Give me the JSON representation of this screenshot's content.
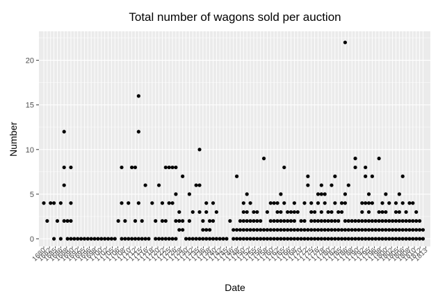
{
  "chart_data": {
    "type": "scatter",
    "title": "Total number of wagons sold per auction",
    "xlabel": "Date",
    "ylabel": "Number",
    "x_tick_labels": [
      "1680",
      "1682",
      "1685",
      "1686",
      "1688",
      "1690",
      "1692",
      "1695",
      "1696",
      "1698",
      "1700",
      "1702",
      "1705",
      "1706",
      "1708",
      "1710",
      "1712",
      "1715",
      "1716",
      "1718",
      "1720",
      "1722",
      "1725",
      "1726",
      "1728",
      "1730",
      "1732",
      "1735",
      "1736",
      "1738",
      "1740",
      "1742",
      "1745",
      "1746",
      "1748",
      "1750",
      "1752",
      "1755",
      "1756",
      "1758",
      "1760",
      "1762",
      "1765",
      "1766",
      "1768",
      "1770",
      "1772",
      "1775",
      "1776",
      "1778",
      "1780",
      "1782",
      "1785",
      "1786",
      "1788",
      "1790",
      "1792",
      "1795",
      "1796",
      "1798",
      "1800",
      "1802",
      "1805",
      "1806",
      "1808",
      "1810",
      "1812",
      "1813"
    ],
    "ylim": [
      0,
      22
    ],
    "y_ticks": [
      0,
      5,
      10,
      15,
      20
    ],
    "grid": true,
    "marker_color": "#000000",
    "panel_background": "#ebebeb",
    "grid_major_color": "#ffffff",
    "points": [
      [
        0,
        4
      ],
      [
        1,
        2
      ],
      [
        2,
        4
      ],
      [
        3,
        0
      ],
      [
        3,
        4
      ],
      [
        4,
        2
      ],
      [
        5,
        4
      ],
      [
        5,
        0
      ],
      [
        6,
        2
      ],
      [
        6,
        6
      ],
      [
        6,
        8
      ],
      [
        6,
        12
      ],
      [
        7,
        0
      ],
      [
        7,
        2
      ],
      [
        8,
        0
      ],
      [
        8,
        2
      ],
      [
        8,
        4
      ],
      [
        8,
        8
      ],
      [
        9,
        0
      ],
      [
        10,
        0
      ],
      [
        11,
        0
      ],
      [
        12,
        0
      ],
      [
        13,
        0
      ],
      [
        14,
        0
      ],
      [
        15,
        0
      ],
      [
        16,
        0
      ],
      [
        17,
        0
      ],
      [
        18,
        0
      ],
      [
        19,
        0
      ],
      [
        20,
        0
      ],
      [
        21,
        0
      ],
      [
        22,
        2
      ],
      [
        23,
        0
      ],
      [
        23,
        4
      ],
      [
        23,
        8
      ],
      [
        24,
        0
      ],
      [
        24,
        2
      ],
      [
        25,
        0
      ],
      [
        25,
        4
      ],
      [
        26,
        0
      ],
      [
        26,
        8
      ],
      [
        27,
        0
      ],
      [
        27,
        2
      ],
      [
        27,
        8
      ],
      [
        28,
        0
      ],
      [
        28,
        4
      ],
      [
        28,
        12
      ],
      [
        28,
        16
      ],
      [
        29,
        0
      ],
      [
        29,
        2
      ],
      [
        30,
        0
      ],
      [
        30,
        6
      ],
      [
        31,
        0
      ],
      [
        32,
        4
      ],
      [
        33,
        0
      ],
      [
        33,
        2
      ],
      [
        34,
        0
      ],
      [
        34,
        6
      ],
      [
        35,
        0
      ],
      [
        35,
        2
      ],
      [
        35,
        4
      ],
      [
        36,
        0
      ],
      [
        36,
        2
      ],
      [
        36,
        8
      ],
      [
        37,
        0
      ],
      [
        37,
        4
      ],
      [
        37,
        8
      ],
      [
        38,
        0
      ],
      [
        38,
        4
      ],
      [
        38,
        8
      ],
      [
        39,
        0
      ],
      [
        39,
        2
      ],
      [
        39,
        5
      ],
      [
        39,
        8
      ],
      [
        40,
        1
      ],
      [
        40,
        2
      ],
      [
        40,
        3
      ],
      [
        41,
        1
      ],
      [
        41,
        2
      ],
      [
        41,
        7
      ],
      [
        42,
        0
      ],
      [
        43,
        0
      ],
      [
        43,
        2
      ],
      [
        43,
        5
      ],
      [
        44,
        0
      ],
      [
        44,
        3
      ],
      [
        45,
        0
      ],
      [
        45,
        6
      ],
      [
        46,
        0
      ],
      [
        46,
        3
      ],
      [
        46,
        6
      ],
      [
        46,
        10
      ],
      [
        47,
        0
      ],
      [
        47,
        1
      ],
      [
        47,
        2
      ],
      [
        48,
        0
      ],
      [
        48,
        1
      ],
      [
        48,
        3
      ],
      [
        48,
        4
      ],
      [
        49,
        0
      ],
      [
        49,
        1
      ],
      [
        49,
        2
      ],
      [
        50,
        0
      ],
      [
        50,
        2
      ],
      [
        50,
        4
      ],
      [
        51,
        0
      ],
      [
        51,
        3
      ],
      [
        52,
        0
      ],
      [
        53,
        0
      ],
      [
        54,
        0
      ],
      [
        55,
        2
      ],
      [
        56,
        0
      ],
      [
        56,
        1
      ],
      [
        57,
        0
      ],
      [
        57,
        1
      ],
      [
        57,
        7
      ],
      [
        58,
        0
      ],
      [
        58,
        1
      ],
      [
        58,
        2
      ],
      [
        59,
        0
      ],
      [
        59,
        1
      ],
      [
        59,
        2
      ],
      [
        59,
        3
      ],
      [
        59,
        4
      ],
      [
        60,
        0
      ],
      [
        60,
        1
      ],
      [
        60,
        2
      ],
      [
        60,
        3
      ],
      [
        60,
        5
      ],
      [
        61,
        0
      ],
      [
        61,
        1
      ],
      [
        61,
        2
      ],
      [
        61,
        4
      ],
      [
        62,
        0
      ],
      [
        62,
        1
      ],
      [
        62,
        2
      ],
      [
        62,
        3
      ],
      [
        63,
        0
      ],
      [
        63,
        1
      ],
      [
        63,
        2
      ],
      [
        63,
        3
      ],
      [
        64,
        0
      ],
      [
        64,
        1
      ],
      [
        64,
        2
      ],
      [
        65,
        0
      ],
      [
        65,
        1
      ],
      [
        65,
        9
      ],
      [
        66,
        0
      ],
      [
        66,
        1
      ],
      [
        66,
        3
      ],
      [
        67,
        0
      ],
      [
        67,
        1
      ],
      [
        67,
        2
      ],
      [
        67,
        4
      ],
      [
        68,
        0
      ],
      [
        68,
        1
      ],
      [
        68,
        2
      ],
      [
        68,
        4
      ],
      [
        69,
        0
      ],
      [
        69,
        1
      ],
      [
        69,
        2
      ],
      [
        69,
        3
      ],
      [
        69,
        4
      ],
      [
        70,
        0
      ],
      [
        70,
        1
      ],
      [
        70,
        2
      ],
      [
        70,
        3
      ],
      [
        70,
        5
      ],
      [
        71,
        0
      ],
      [
        71,
        1
      ],
      [
        71,
        2
      ],
      [
        71,
        4
      ],
      [
        71,
        8
      ],
      [
        72,
        0
      ],
      [
        72,
        1
      ],
      [
        72,
        2
      ],
      [
        72,
        3
      ],
      [
        73,
        0
      ],
      [
        73,
        1
      ],
      [
        73,
        2
      ],
      [
        73,
        3
      ],
      [
        74,
        0
      ],
      [
        74,
        1
      ],
      [
        74,
        2
      ],
      [
        74,
        3
      ],
      [
        74,
        4
      ],
      [
        75,
        0
      ],
      [
        75,
        1
      ],
      [
        75,
        3
      ],
      [
        76,
        0
      ],
      [
        76,
        1
      ],
      [
        76,
        2
      ],
      [
        77,
        0
      ],
      [
        77,
        1
      ],
      [
        77,
        2
      ],
      [
        77,
        4
      ],
      [
        78,
        0
      ],
      [
        78,
        1
      ],
      [
        78,
        6
      ],
      [
        78,
        7
      ],
      [
        79,
        0
      ],
      [
        79,
        1
      ],
      [
        79,
        2
      ],
      [
        79,
        3
      ],
      [
        79,
        4
      ],
      [
        80,
        0
      ],
      [
        80,
        1
      ],
      [
        80,
        2
      ],
      [
        80,
        3
      ],
      [
        81,
        0
      ],
      [
        81,
        1
      ],
      [
        81,
        2
      ],
      [
        81,
        4
      ],
      [
        81,
        5
      ],
      [
        82,
        0
      ],
      [
        82,
        1
      ],
      [
        82,
        2
      ],
      [
        82,
        3
      ],
      [
        82,
        5
      ],
      [
        82,
        6
      ],
      [
        83,
        0
      ],
      [
        83,
        1
      ],
      [
        83,
        2
      ],
      [
        83,
        4
      ],
      [
        83,
        5
      ],
      [
        84,
        0
      ],
      [
        84,
        1
      ],
      [
        84,
        2
      ],
      [
        84,
        3
      ],
      [
        85,
        0
      ],
      [
        85,
        1
      ],
      [
        85,
        2
      ],
      [
        85,
        3
      ],
      [
        85,
        6
      ],
      [
        86,
        0
      ],
      [
        86,
        1
      ],
      [
        86,
        2
      ],
      [
        86,
        4
      ],
      [
        86,
        7
      ],
      [
        87,
        0
      ],
      [
        87,
        1
      ],
      [
        87,
        2
      ],
      [
        87,
        3
      ],
      [
        88,
        0
      ],
      [
        88,
        1
      ],
      [
        88,
        3
      ],
      [
        88,
        4
      ],
      [
        89,
        0
      ],
      [
        89,
        1
      ],
      [
        89,
        2
      ],
      [
        89,
        4
      ],
      [
        89,
        5
      ],
      [
        89,
        22
      ],
      [
        90,
        0
      ],
      [
        90,
        1
      ],
      [
        90,
        2
      ],
      [
        90,
        6
      ],
      [
        91,
        0
      ],
      [
        91,
        1
      ],
      [
        91,
        2
      ],
      [
        92,
        0
      ],
      [
        92,
        1
      ],
      [
        92,
        2
      ],
      [
        92,
        8
      ],
      [
        92,
        9
      ],
      [
        93,
        0
      ],
      [
        93,
        1
      ],
      [
        93,
        2
      ],
      [
        94,
        0
      ],
      [
        94,
        1
      ],
      [
        94,
        2
      ],
      [
        94,
        3
      ],
      [
        94,
        4
      ],
      [
        95,
        0
      ],
      [
        95,
        1
      ],
      [
        95,
        2
      ],
      [
        95,
        4
      ],
      [
        95,
        7
      ],
      [
        95,
        8
      ],
      [
        96,
        0
      ],
      [
        96,
        1
      ],
      [
        96,
        2
      ],
      [
        96,
        3
      ],
      [
        96,
        4
      ],
      [
        96,
        5
      ],
      [
        97,
        0
      ],
      [
        97,
        1
      ],
      [
        97,
        2
      ],
      [
        97,
        4
      ],
      [
        97,
        7
      ],
      [
        98,
        0
      ],
      [
        98,
        1
      ],
      [
        98,
        2
      ],
      [
        99,
        0
      ],
      [
        99,
        1
      ],
      [
        99,
        2
      ],
      [
        99,
        3
      ],
      [
        99,
        9
      ],
      [
        100,
        0
      ],
      [
        100,
        1
      ],
      [
        100,
        2
      ],
      [
        100,
        3
      ],
      [
        100,
        4
      ],
      [
        101,
        0
      ],
      [
        101,
        1
      ],
      [
        101,
        2
      ],
      [
        101,
        3
      ],
      [
        101,
        5
      ],
      [
        102,
        0
      ],
      [
        102,
        1
      ],
      [
        102,
        2
      ],
      [
        102,
        4
      ],
      [
        103,
        0
      ],
      [
        103,
        1
      ],
      [
        103,
        2
      ],
      [
        104,
        0
      ],
      [
        104,
        1
      ],
      [
        104,
        2
      ],
      [
        104,
        3
      ],
      [
        104,
        4
      ],
      [
        105,
        0
      ],
      [
        105,
        1
      ],
      [
        105,
        2
      ],
      [
        105,
        3
      ],
      [
        105,
        5
      ],
      [
        106,
        0
      ],
      [
        106,
        1
      ],
      [
        106,
        2
      ],
      [
        106,
        4
      ],
      [
        106,
        7
      ],
      [
        107,
        0
      ],
      [
        107,
        1
      ],
      [
        107,
        2
      ],
      [
        107,
        3
      ],
      [
        108,
        0
      ],
      [
        108,
        1
      ],
      [
        108,
        2
      ],
      [
        108,
        4
      ],
      [
        109,
        0
      ],
      [
        109,
        1
      ],
      [
        109,
        2
      ],
      [
        109,
        4
      ],
      [
        110,
        0
      ],
      [
        110,
        1
      ],
      [
        110,
        2
      ],
      [
        110,
        3
      ],
      [
        111,
        0
      ],
      [
        111,
        1
      ],
      [
        111,
        2
      ],
      [
        112,
        0
      ],
      [
        112,
        1
      ]
    ]
  }
}
